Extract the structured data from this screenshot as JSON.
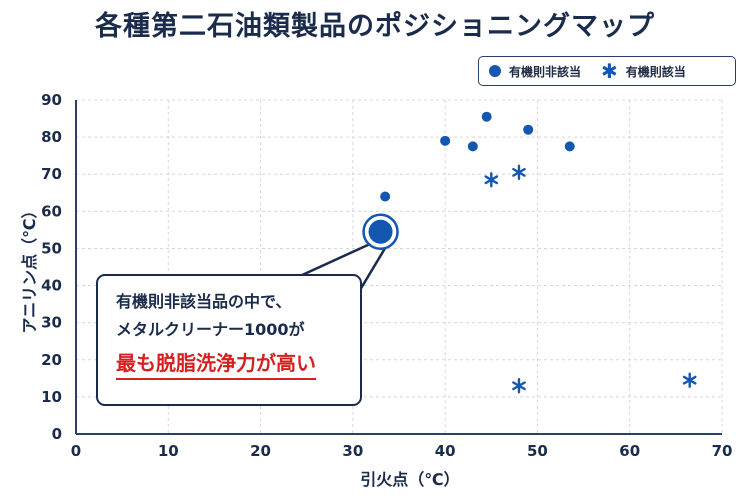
{
  "chart_data": {
    "type": "scatter",
    "title": "各種第二石油類製品のポジショニングマップ",
    "xlabel": "引火点（℃）",
    "ylabel": "アニリン点（℃）",
    "xlim": [
      0,
      70
    ],
    "ylim": [
      0,
      90
    ],
    "xticks": [
      0,
      10,
      20,
      30,
      40,
      50,
      60,
      70
    ],
    "yticks": [
      0,
      10,
      20,
      30,
      40,
      50,
      60,
      70,
      80,
      90
    ],
    "grid": true,
    "legend_position": "top-right",
    "series": [
      {
        "name": "有機則非該当",
        "marker": "circle",
        "color": "#1457b0",
        "points": [
          [
            33.5,
            64
          ],
          [
            40,
            79
          ],
          [
            43,
            77.5
          ],
          [
            44.5,
            85.5
          ],
          [
            49,
            82
          ],
          [
            53.5,
            77.5
          ]
        ]
      },
      {
        "name": "有機則該当",
        "marker": "star",
        "color": "#1457b0",
        "points": [
          [
            45,
            68.5
          ],
          [
            48,
            70.5
          ],
          [
            48,
            13
          ],
          [
            66.5,
            14.5
          ]
        ]
      }
    ],
    "highlight": {
      "x": 33,
      "y": 54.5,
      "color": "#1457b0"
    },
    "annotation": {
      "line1": "有機則非該当品の中で、",
      "line2": "メタルクリーナー1000が",
      "line3": "最も脱脂洗浄力が高い"
    }
  }
}
